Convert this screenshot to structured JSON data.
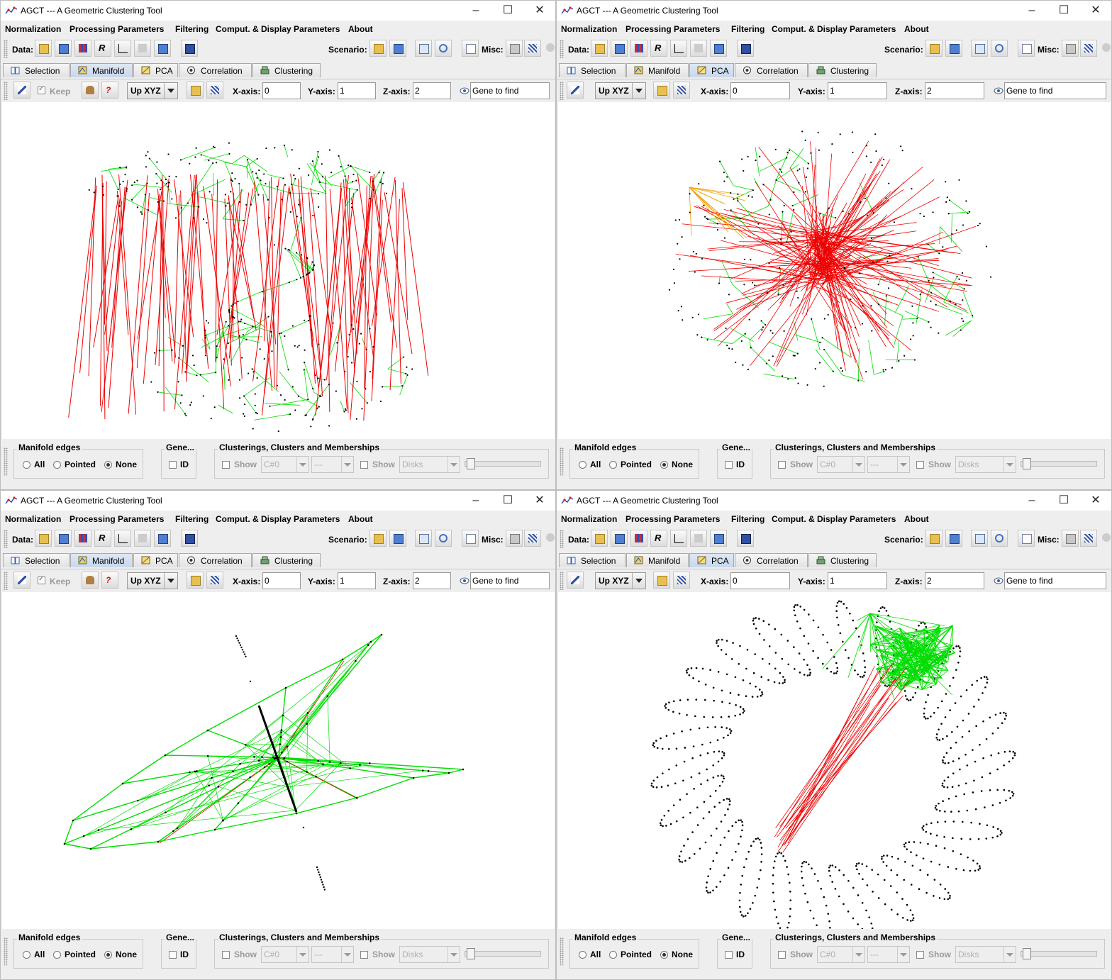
{
  "app": {
    "title": "AGCT --- A Geometric Clustering Tool",
    "menu": [
      "Normalization",
      "Processing Parameters",
      "Filtering",
      "Comput. & Display Parameters",
      "About"
    ],
    "toolbar": {
      "data_label": "Data:",
      "scenario_label": "Scenario:",
      "misc_label": "Misc:"
    },
    "tabs": [
      "Selection",
      "Manifold",
      "PCA",
      "Correlation",
      "Clustering"
    ],
    "controls": {
      "keep_label": "Keep",
      "view_combo": "Up XYZ",
      "x_label": "X-axis:",
      "x_value": "0",
      "y_label": "Y-axis:",
      "y_value": "1",
      "z_label": "Z-axis:",
      "z_value": "2",
      "gene_placeholder": "Gene to find"
    },
    "bottom": {
      "manifold_edges": "Manifold edges",
      "opt_all": "All",
      "opt_pointed": "Pointed",
      "opt_none": "None",
      "gene_group": "Gene...",
      "id_label": "ID",
      "clusterings_group": "Clusterings, Clusters and Memberships",
      "show_label": "Show",
      "cluster_combo": "C#0",
      "member_combo": "---",
      "disks_combo": "Disks"
    }
  },
  "windows": [
    {
      "id": "win-top-left",
      "active_tab": "Manifold",
      "view": "3d helical manifold (green mesh with red cross edges)"
    },
    {
      "id": "win-top-right",
      "active_tab": "PCA",
      "view": "pca ellipsoid (green mesh with dense red center edges)"
    },
    {
      "id": "win-bottom-left",
      "active_tab": "Manifold",
      "view": "flat manifold star with black line"
    },
    {
      "id": "win-bottom-right",
      "active_tab": "PCA",
      "view": "ring of dotted loops with green and red edges"
    }
  ],
  "colors": {
    "green": "#00dd00",
    "red": "#ee0000",
    "orange": "#f0a000",
    "point": "#000000",
    "active_tab": "#c7d7ec"
  }
}
